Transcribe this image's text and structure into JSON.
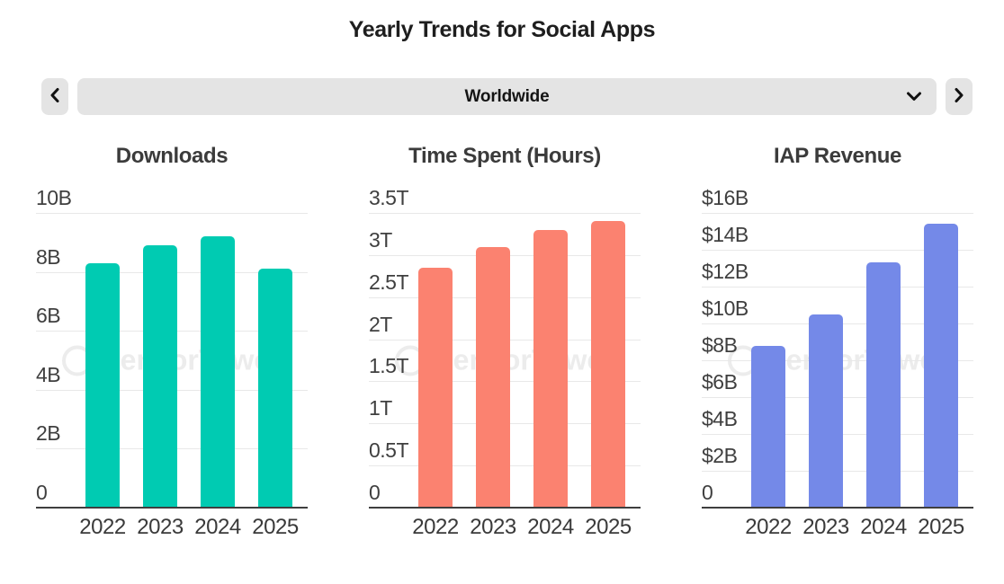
{
  "header": {
    "title": "Yearly Trends for Social Apps"
  },
  "selector": {
    "value": "Worldwide",
    "prev_icon": "chevron-left",
    "next_icon": "chevron-right",
    "caret_icon": "chevron-down"
  },
  "watermark": {
    "text": "SensorTower"
  },
  "colors": {
    "downloads_bar": "#00CBB2",
    "time_spent_bar": "#FB8270",
    "iap_revenue_bar": "#7489E8",
    "gridline": "#e8e8e8",
    "axis": "#3f3f3f",
    "control_background": "#e4e4e4"
  },
  "chart_data": [
    {
      "type": "bar",
      "title": "Downloads",
      "categories": [
        "2022",
        "2023",
        "2024",
        "2025"
      ],
      "values": [
        8.3,
        8.9,
        9.2,
        8.1
      ],
      "unit": "billions of downloads",
      "y_tick_labels": [
        "10B",
        "8B",
        "6B",
        "4B",
        "2B",
        "0"
      ],
      "ylim": [
        0,
        10
      ],
      "grid": true,
      "legend": "none",
      "bar_color": "#00CBB2"
    },
    {
      "type": "bar",
      "title": "Time Spent (Hours)",
      "categories": [
        "2022",
        "2023",
        "2024",
        "2025"
      ],
      "values": [
        2.85,
        3.1,
        3.3,
        3.4
      ],
      "unit": "trillions of hours",
      "y_tick_labels": [
        "3.5T",
        "3T",
        "2.5T",
        "2T",
        "1.5T",
        "1T",
        "0.5T",
        "0"
      ],
      "ylim": [
        0,
        3.5
      ],
      "grid": true,
      "legend": "none",
      "bar_color": "#FB8270"
    },
    {
      "type": "bar",
      "title": "IAP Revenue",
      "categories": [
        "2022",
        "2023",
        "2024",
        "2025"
      ],
      "values": [
        8.8,
        10.5,
        13.3,
        15.4
      ],
      "unit": "billions of USD",
      "y_tick_labels": [
        "$16B",
        "$14B",
        "$12B",
        "$10B",
        "$8B",
        "$6B",
        "$4B",
        "$2B",
        "0"
      ],
      "ylim": [
        0,
        16
      ],
      "grid": true,
      "legend": "none",
      "bar_color": "#7489E8"
    }
  ]
}
